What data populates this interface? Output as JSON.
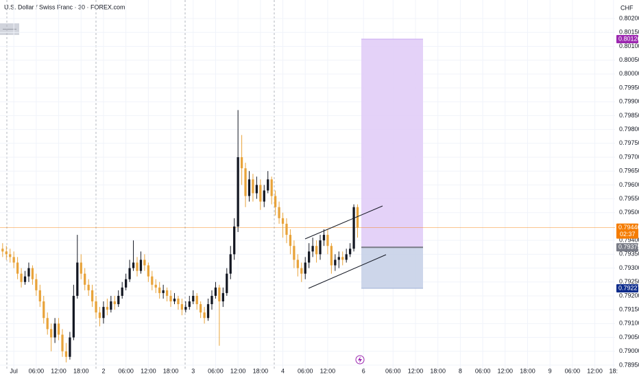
{
  "chart_data": {
    "type": "candlestick",
    "title": "U.S. Dollar / Swiss Franc · 30 · FOREX.com",
    "currency": "CHF",
    "up_color": "#131722",
    "down_color": "#e8a33a",
    "x": [
      -3,
      -2,
      -1,
      0,
      1,
      2,
      3,
      4,
      5,
      6,
      7,
      8,
      9,
      10,
      11,
      12,
      13,
      14,
      15,
      16,
      17,
      18,
      19,
      20,
      21,
      22,
      23,
      24,
      25,
      26,
      27,
      28,
      29,
      30,
      31,
      32,
      33,
      34,
      35,
      36,
      37,
      38,
      39,
      40,
      41,
      42,
      43,
      44,
      45,
      46,
      47,
      48,
      49,
      50,
      51,
      52,
      53,
      54,
      55,
      56,
      57,
      58,
      59,
      60,
      61,
      62,
      63,
      64,
      65,
      66,
      67,
      68,
      69,
      70,
      71,
      72,
      73,
      74,
      75,
      76,
      77,
      78,
      79,
      80,
      81,
      82,
      83,
      84,
      85,
      86,
      87,
      88,
      89,
      90,
      91,
      92
    ],
    "open": [
      0.7937,
      0.7936,
      0.7935,
      0.7934,
      0.7932,
      0.7928,
      0.7925,
      0.7927,
      0.793,
      0.7926,
      0.7922,
      0.7918,
      0.7912,
      0.7908,
      0.7905,
      0.791,
      0.7906,
      0.79,
      0.7898,
      0.7905,
      0.792,
      0.7932,
      0.7928,
      0.7924,
      0.7922,
      0.7918,
      0.7914,
      0.7912,
      0.7916,
      0.7915,
      0.7918,
      0.7917,
      0.792,
      0.7923,
      0.7926,
      0.793,
      0.7932,
      0.7929,
      0.7933,
      0.7931,
      0.7927,
      0.7924,
      0.7923,
      0.7921,
      0.7922,
      0.792,
      0.7918,
      0.7919,
      0.7917,
      0.7915,
      0.7916,
      0.7918,
      0.792,
      0.7917,
      0.7914,
      0.7912,
      0.7917,
      0.792,
      0.7923,
      0.7918,
      0.7921,
      0.7928,
      0.7935,
      0.7945,
      0.797,
      0.7966,
      0.7956,
      0.7962,
      0.7957,
      0.796,
      0.7954,
      0.7958,
      0.7962,
      0.7956,
      0.7952,
      0.7948,
      0.7946,
      0.7942,
      0.7938,
      0.7933,
      0.793,
      0.7928,
      0.7932,
      0.7936,
      0.7938,
      0.7935,
      0.794,
      0.7942,
      0.7938,
      0.7931,
      0.7933,
      0.7934,
      0.7933,
      0.7935,
      0.7937,
      0.7952
    ],
    "high": [
      0.7939,
      0.7938,
      0.7937,
      0.7936,
      0.7934,
      0.793,
      0.7929,
      0.7932,
      0.7931,
      0.7928,
      0.7924,
      0.792,
      0.7914,
      0.791,
      0.7912,
      0.7912,
      0.7908,
      0.7903,
      0.7907,
      0.7924,
      0.7942,
      0.7935,
      0.793,
      0.7926,
      0.7924,
      0.792,
      0.7916,
      0.7918,
      0.7919,
      0.792,
      0.792,
      0.7922,
      0.7925,
      0.7928,
      0.7933,
      0.794,
      0.7934,
      0.7936,
      0.7935,
      0.7932,
      0.7929,
      0.7926,
      0.7925,
      0.7924,
      0.7923,
      0.7922,
      0.7921,
      0.792,
      0.7919,
      0.7918,
      0.792,
      0.7922,
      0.7921,
      0.7918,
      0.7916,
      0.7919,
      0.7922,
      0.7925,
      0.7924,
      0.7923,
      0.793,
      0.7938,
      0.7948,
      0.7987,
      0.7978,
      0.7968,
      0.7965,
      0.7964,
      0.7963,
      0.7962,
      0.796,
      0.7965,
      0.7963,
      0.7958,
      0.7954,
      0.795,
      0.7948,
      0.7944,
      0.794,
      0.7935,
      0.7932,
      0.7934,
      0.7939,
      0.7941,
      0.794,
      0.7942,
      0.7944,
      0.7944,
      0.7939,
      0.7935,
      0.7936,
      0.7936,
      0.7937,
      0.7939,
      0.7953,
      0.7953
    ],
    "low": [
      0.7934,
      0.7933,
      0.7932,
      0.793,
      0.7926,
      0.7923,
      0.7924,
      0.7925,
      0.7924,
      0.792,
      0.7916,
      0.791,
      0.7906,
      0.79,
      0.7903,
      0.7904,
      0.7898,
      0.7896,
      0.7897,
      0.7904,
      0.7919,
      0.7926,
      0.7922,
      0.792,
      0.7916,
      0.7912,
      0.7909,
      0.791,
      0.7913,
      0.7914,
      0.7915,
      0.7916,
      0.7919,
      0.7922,
      0.7925,
      0.7929,
      0.7927,
      0.7928,
      0.7929,
      0.7925,
      0.7922,
      0.7921,
      0.7919,
      0.7919,
      0.7918,
      0.7916,
      0.7917,
      0.7915,
      0.7913,
      0.7914,
      0.7915,
      0.7917,
      0.7915,
      0.7912,
      0.791,
      0.7911,
      0.7915,
      0.7919,
      0.7902,
      0.7916,
      0.792,
      0.7926,
      0.7933,
      0.7943,
      0.796,
      0.7952,
      0.7954,
      0.7954,
      0.7955,
      0.7951,
      0.7952,
      0.7957,
      0.7953,
      0.7949,
      0.7946,
      0.7941,
      0.7939,
      0.7935,
      0.793,
      0.7927,
      0.7925,
      0.7926,
      0.793,
      0.7934,
      0.7932,
      0.7933,
      0.7938,
      0.7935,
      0.7928,
      0.7929,
      0.793,
      0.7931,
      0.7932,
      0.7934,
      0.7936,
      0.7941
    ],
    "close": [
      0.7936,
      0.7935,
      0.7934,
      0.7932,
      0.7928,
      0.7925,
      0.7927,
      0.793,
      0.7926,
      0.7922,
      0.7918,
      0.7912,
      0.7908,
      0.7905,
      0.791,
      0.7906,
      0.79,
      0.7898,
      0.7905,
      0.792,
      0.7932,
      0.7928,
      0.7924,
      0.7922,
      0.7918,
      0.7914,
      0.7912,
      0.7916,
      0.7915,
      0.7918,
      0.7917,
      0.792,
      0.7923,
      0.7926,
      0.793,
      0.7932,
      0.7929,
      0.7933,
      0.7931,
      0.7927,
      0.7924,
      0.7923,
      0.7921,
      0.7922,
      0.792,
      0.7918,
      0.7919,
      0.7917,
      0.7915,
      0.7916,
      0.7918,
      0.792,
      0.7917,
      0.7914,
      0.7912,
      0.7917,
      0.792,
      0.7923,
      0.7918,
      0.7921,
      0.7928,
      0.7935,
      0.7945,
      0.797,
      0.7966,
      0.7956,
      0.7962,
      0.7957,
      0.796,
      0.7954,
      0.7958,
      0.7962,
      0.7956,
      0.7952,
      0.7948,
      0.7946,
      0.7942,
      0.7938,
      0.7933,
      0.793,
      0.7928,
      0.7932,
      0.7936,
      0.7938,
      0.7935,
      0.794,
      0.7942,
      0.7938,
      0.7931,
      0.7933,
      0.7934,
      0.7933,
      0.7935,
      0.7937,
      0.7952,
      0.79446
    ],
    "xlim": [
      -3.7,
      160.9
    ],
    "ylim": [
      0.7893,
      0.80267
    ],
    "xticks": [
      {
        "value": 0,
        "label": "Jul"
      },
      {
        "value": 6,
        "label": "06:00"
      },
      {
        "value": 12,
        "label": "12:00"
      },
      {
        "value": 18,
        "label": "18:00"
      },
      {
        "value": 24,
        "label": "2"
      },
      {
        "value": 30,
        "label": "06:00"
      },
      {
        "value": 36,
        "label": "12:00"
      },
      {
        "value": 42,
        "label": "18:00"
      },
      {
        "value": 48,
        "label": "3"
      },
      {
        "value": 54,
        "label": "06:00"
      },
      {
        "value": 60,
        "label": "12:00"
      },
      {
        "value": 66,
        "label": "18:00"
      },
      {
        "value": 72,
        "label": "4"
      },
      {
        "value": 78,
        "label": "06:00"
      },
      {
        "value": 84,
        "label": "12:00"
      },
      {
        "value": 93.6,
        "label": "6"
      },
      {
        "value": 101.5,
        "label": "06:00"
      },
      {
        "value": 107.5,
        "label": "12:00"
      },
      {
        "value": 113.5,
        "label": "18:00"
      },
      {
        "value": 119.5,
        "label": "8"
      },
      {
        "value": 125.5,
        "label": "06:00"
      },
      {
        "value": 131.5,
        "label": "12:00"
      },
      {
        "value": 137.5,
        "label": "18:00"
      },
      {
        "value": 143.5,
        "label": "9"
      },
      {
        "value": 149.5,
        "label": "06:00"
      },
      {
        "value": 155.5,
        "label": "12:00"
      },
      {
        "value": 160.5,
        "label": "18:"
      }
    ],
    "yticks": [
      {
        "value": 0.802,
        "label": "0.80200"
      },
      {
        "value": 0.8015,
        "label": "0.80150"
      },
      {
        "value": 0.801,
        "label": "0.80100"
      },
      {
        "value": 0.8005,
        "label": "0.80050"
      },
      {
        "value": 0.8,
        "label": "0.80000"
      },
      {
        "value": 0.7995,
        "label": "0.79950"
      },
      {
        "value": 0.799,
        "label": "0.79900"
      },
      {
        "value": 0.7985,
        "label": "0.79850"
      },
      {
        "value": 0.798,
        "label": "0.79800"
      },
      {
        "value": 0.7975,
        "label": "0.79750"
      },
      {
        "value": 0.797,
        "label": "0.79700"
      },
      {
        "value": 0.7965,
        "label": "0.79650"
      },
      {
        "value": 0.796,
        "label": "0.79600"
      },
      {
        "value": 0.7955,
        "label": "0.79550"
      },
      {
        "value": 0.795,
        "label": "0.79500"
      },
      {
        "value": 0.794,
        "label": "0.79400"
      },
      {
        "value": 0.7935,
        "label": "0.79350"
      },
      {
        "value": 0.793,
        "label": "0.79300"
      },
      {
        "value": 0.7925,
        "label": "0.79250"
      },
      {
        "value": 0.792,
        "label": "0.79200"
      },
      {
        "value": 0.7915,
        "label": "0.79150"
      },
      {
        "value": 0.791,
        "label": "0.79100"
      },
      {
        "value": 0.7905,
        "label": "0.79050"
      },
      {
        "value": 0.79,
        "label": "0.79000"
      },
      {
        "value": 0.7895,
        "label": "0.78950"
      }
    ],
    "last_price": {
      "value": 0.79446,
      "countdown": "02:37",
      "color": "#f57c00"
    },
    "position": {
      "target": 0.80126,
      "entry": 0.79375,
      "stop": 0.79227,
      "target_color": "#9c27b0",
      "entry_color": "#787b86",
      "stop_color": "#0d2c8c"
    }
  }
}
